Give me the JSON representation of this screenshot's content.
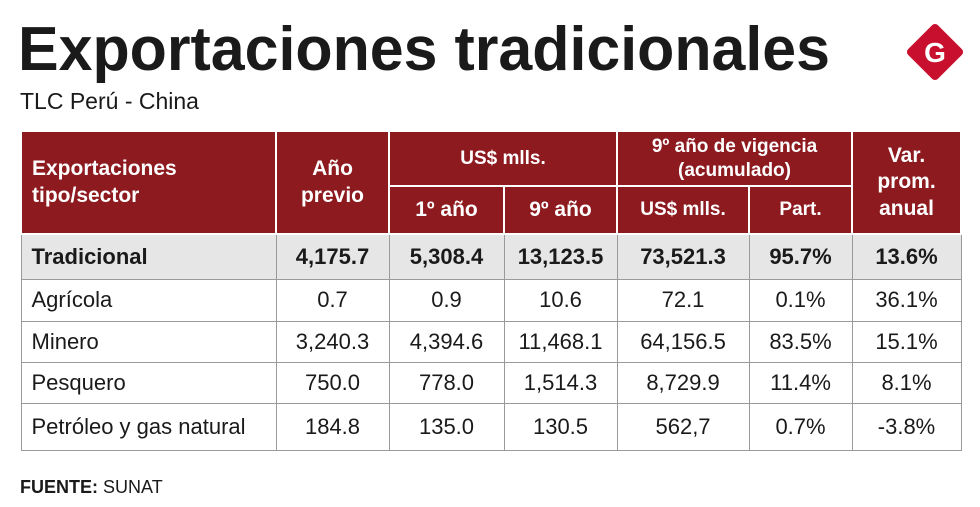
{
  "header": {
    "title": "Exportaciones tradicionales",
    "subtitle": "TLC Perú - China",
    "logo": "G"
  },
  "table": {
    "headers": {
      "sector": "Exportaciones tipo/sector",
      "previous_year": "Año previo",
      "usd_group": "US$ mlls.",
      "first_year": "1º año",
      "ninth_year": "9º año",
      "cumulative_group": "9º año de vigencia (acumulado)",
      "cumulative_usd": "US$ mlls.",
      "share": "Part.",
      "growth": "Var. prom. anual"
    },
    "rows": [
      [
        "Tradicional",
        "4,175.7",
        "5,308.4",
        "13,123.5",
        "73,521.3",
        "95.7%",
        "13.6%"
      ],
      [
        "Agrícola",
        "0.7",
        "0.9",
        "10.6",
        "72.1",
        "0.1%",
        "36.1%"
      ],
      [
        "Minero",
        "3,240.3",
        "4,394.6",
        "11,468.1",
        "64,156.5",
        "83.5%",
        "15.1%"
      ],
      [
        "Pesquero",
        "750.0",
        "778.0",
        "1,514.3",
        "8,729.9",
        "11.4%",
        "8.1%"
      ],
      [
        "Petróleo y gas natural",
        "184.8",
        "135.0",
        "130.5",
        "562,7",
        "0.7%",
        "-3.8%"
      ]
    ]
  },
  "source": {
    "label": "FUENTE:",
    "text": "SUNAT"
  }
}
